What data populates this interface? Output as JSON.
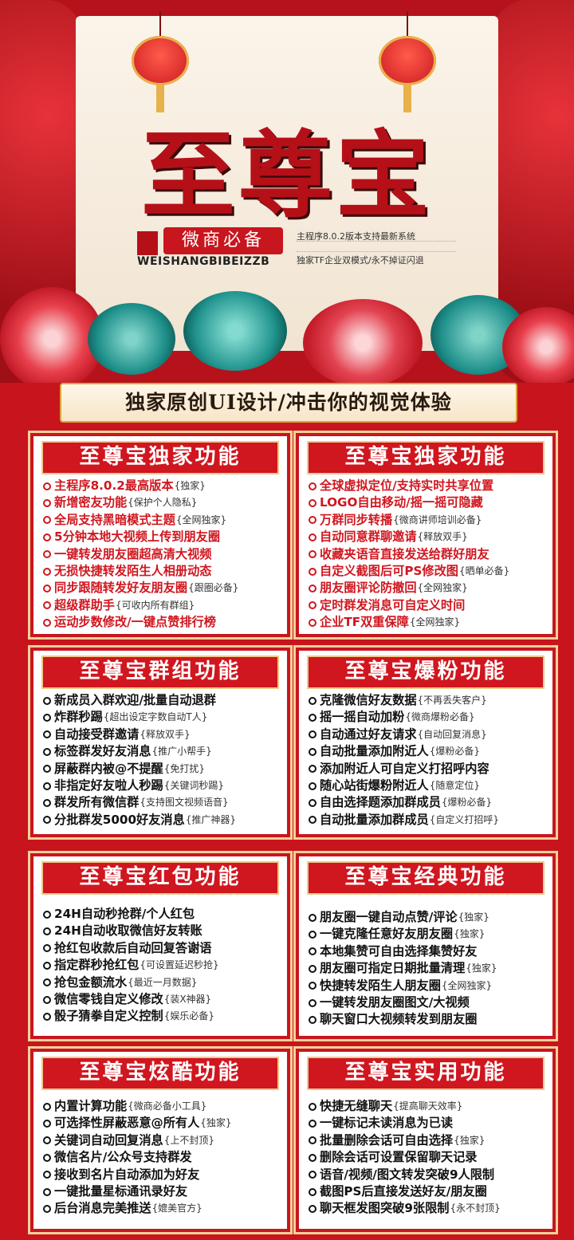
{
  "header": {
    "brand": "至尊宝",
    "slogan": "微商必备",
    "pinyin": "WEISHANGBIBEIZZB",
    "sub1": "主程序8.0.2版本支持最新系统",
    "sub2": "独家TF企业双模式/永不掉证闪退"
  },
  "banner": "独家原创UI设计/冲击你的视觉体验",
  "cards": [
    {
      "title": "至尊宝独家功能",
      "items": [
        {
          "text": "主程序8.0.2最高版本",
          "note": "{独家}"
        },
        {
          "text": "新增密友功能",
          "note": "{保护个人隐私}"
        },
        {
          "text": "全局支持黑暗模式主题",
          "note": "{全网独家}"
        },
        {
          "text": "5分钟本地大视频上传到朋友圈",
          "note": ""
        },
        {
          "text": "一键转发朋友圈超高清大视频",
          "note": ""
        },
        {
          "text": "无损快捷转发陌生人相册动态",
          "note": ""
        },
        {
          "text": "同步跟随转发好友朋友圈",
          "note": "{跟圈必备}"
        },
        {
          "text": "超级群助手",
          "note": "{可收内所有群组}"
        },
        {
          "text": "运动步数修改/一键点赞排行榜",
          "note": ""
        }
      ]
    },
    {
      "title": "至尊宝独家功能",
      "items": [
        {
          "text": "全球虚拟定位/支持实时共享位置",
          "note": ""
        },
        {
          "text": "LOGO自由移动/摇一摇可隐藏",
          "note": ""
        },
        {
          "text": "万群同步转播",
          "note": "{微商讲师培训必备}"
        },
        {
          "text": "自动同意群聊邀请",
          "note": "{释放双手}"
        },
        {
          "text": "收藏夹语音直接发送给群好朋友",
          "note": ""
        },
        {
          "text": "自定义截图后可PS修改图",
          "note": "{晒单必备}"
        },
        {
          "text": "朋友圈评论防撤回",
          "note": "{全网独家}"
        },
        {
          "text": "定时群发消息可自定义时间",
          "note": ""
        },
        {
          "text": "企业TF双重保障",
          "note": "{全网独家}"
        }
      ]
    },
    {
      "title": "至尊宝群组功能",
      "items": [
        {
          "text": "新成员入群欢迎/批量自动退群",
          "note": ""
        },
        {
          "text": "炸群秒踢",
          "note": "{超出设定字数自动T人}"
        },
        {
          "text": "自动接受群邀请",
          "note": "{释放双手}"
        },
        {
          "text": "标签群发好友消息",
          "note": "{推广小帮手}"
        },
        {
          "text": "屏蔽群内被@不提醒",
          "note": "{免打扰}"
        },
        {
          "text": "非指定好友啦人秒踢",
          "note": "{关键词秒踢}"
        },
        {
          "text": "群发所有微信群",
          "note": "{支持图文视频语音}"
        },
        {
          "text": "分批群发5000好友消息",
          "note": "{推广神器}"
        }
      ]
    },
    {
      "title": "至尊宝爆粉功能",
      "items": [
        {
          "text": "克隆微信好友数据",
          "note": "{不再丢失客户}"
        },
        {
          "text": "摇一摇自动加粉",
          "note": "{微商爆粉必备}"
        },
        {
          "text": "自动通过好友请求",
          "note": "{自动回复消息}"
        },
        {
          "text": "自动批量添加附近人",
          "note": "{爆粉必备}"
        },
        {
          "text": "添加附近人可自定义打招呼内容",
          "note": ""
        },
        {
          "text": "随心站街爆粉附近人",
          "note": "{随意定位}"
        },
        {
          "text": "自由选择题添加群成员",
          "note": "{爆粉必备}"
        },
        {
          "text": "自动批量添加群成员",
          "note": "{自定义打招呼}"
        }
      ]
    },
    {
      "title": "至尊宝红包功能",
      "items": [
        {
          "text": "24H自动秒抢群/个人红包",
          "note": ""
        },
        {
          "text": "24H自动收取微信好友转账",
          "note": ""
        },
        {
          "text": "抢红包收款后自动回复答谢语",
          "note": ""
        },
        {
          "text": "指定群秒抢红包",
          "note": "{可设置延迟秒抢}"
        },
        {
          "text": "抢包金额流水",
          "note": "{最近一月数据}"
        },
        {
          "text": "微信零钱自定义修改",
          "note": "{装X神器}"
        },
        {
          "text": "骰子猜拳自定义控制",
          "note": "{娱乐必备}"
        }
      ]
    },
    {
      "title": "至尊宝经典功能",
      "items": [
        {
          "text": "朋友圈一键自动点赞/评论",
          "note": "{独家}"
        },
        {
          "text": "一键克隆任意好友朋友圈",
          "note": "{独家}"
        },
        {
          "text": "本地集赞可自由选择集赞好友",
          "note": ""
        },
        {
          "text": "朋友圈可指定日期批量清理",
          "note": "{独家}"
        },
        {
          "text": "快捷转发陌生人朋友圈",
          "note": "{全网独家}"
        },
        {
          "text": "一键转发朋友圈图文/大视频",
          "note": ""
        },
        {
          "text": "聊天窗口大视频转发到朋友圈",
          "note": ""
        }
      ]
    },
    {
      "title": "至尊宝炫酷功能",
      "items": [
        {
          "text": "内置计算功能",
          "note": "{微商必备小工具}"
        },
        {
          "text": "可选择性屏蔽恶意@所有人",
          "note": "{独家}"
        },
        {
          "text": "关键词自动回复消息",
          "note": "{上不封顶}"
        },
        {
          "text": "微信名片/公众号支持群发",
          "note": ""
        },
        {
          "text": "接收到名片自动添加为好友",
          "note": ""
        },
        {
          "text": "一键批量星标通讯录好友",
          "note": ""
        },
        {
          "text": "后台消息完美推送",
          "note": "{媲美官方}"
        }
      ]
    },
    {
      "title": "至尊宝实用功能",
      "items": [
        {
          "text": "快捷无缝聊天",
          "note": "{提高聊天效率}"
        },
        {
          "text": "一键标记未读消息为已读",
          "note": ""
        },
        {
          "text": "批量删除会话可自由选择",
          "note": "{独家}"
        },
        {
          "text": "删除会话可设置保留聊天记录",
          "note": ""
        },
        {
          "text": "语音/视频/图文转发突破9人限制",
          "note": ""
        },
        {
          "text": "截图PS后直接发送好友/朋友圈",
          "note": ""
        },
        {
          "text": "聊天框发图突破9张限制",
          "note": "{永不封顶}"
        }
      ]
    }
  ]
}
